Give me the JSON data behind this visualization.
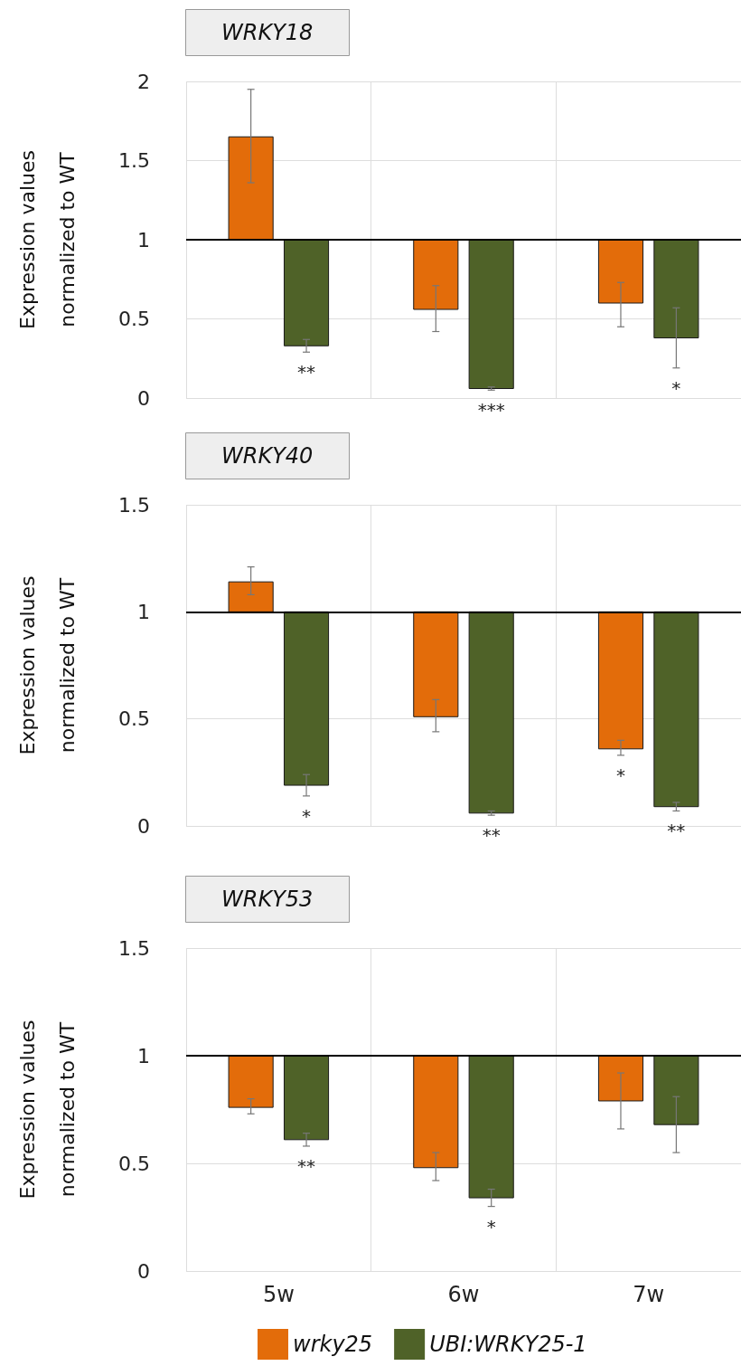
{
  "chart_data": [
    {
      "type": "bar",
      "title": "WRKY18",
      "ylabel": "Expression values\nnormalized to WT",
      "categories": [
        null,
        null,
        null
      ],
      "series": [
        {
          "color": "#e36c0a",
          "base": [
            1,
            1,
            1
          ],
          "values": [
            0.65,
            -0.44,
            -0.4
          ],
          "errors": [
            [
              1.36,
              1.95
            ],
            [
              0.42,
              0.71
            ],
            [
              0.45,
              0.73
            ]
          ]
        },
        {
          "color": "#4f6228",
          "base": [
            1,
            1,
            1
          ],
          "values": [
            -0.67,
            -0.94,
            -0.62
          ],
          "errors": [
            [
              0.29,
              0.37
            ],
            [
              0.05,
              0.07
            ],
            [
              0.19,
              0.57
            ]
          ],
          "value_labels": [
            "**",
            "***",
            "*"
          ]
        }
      ],
      "ylim": [
        0,
        2
      ],
      "yticks": [
        0,
        0.5,
        1,
        1.5,
        2
      ],
      "grid": true,
      "legend": false,
      "tick_labels": "y",
      "ref_lines": [
        {
          "axis": "y",
          "value": 1,
          "color": "#000000"
        }
      ]
    },
    {
      "type": "bar",
      "title": "WRKY40",
      "ylabel": "Expression values\nnormalized to WT",
      "categories": [
        null,
        null,
        null
      ],
      "series": [
        {
          "color": "#e36c0a",
          "base": [
            1,
            1,
            1
          ],
          "values": [
            0.14,
            -0.49,
            -0.64
          ],
          "errors": [
            [
              1.08,
              1.21
            ],
            [
              0.44,
              0.59
            ],
            [
              0.33,
              0.4
            ]
          ],
          "value_labels": [
            null,
            null,
            "*"
          ]
        },
        {
          "color": "#4f6228",
          "base": [
            1,
            1,
            1
          ],
          "values": [
            -0.81,
            -0.94,
            -0.91
          ],
          "errors": [
            [
              0.14,
              0.24
            ],
            [
              0.05,
              0.07
            ],
            [
              0.07,
              0.11
            ]
          ],
          "value_labels": [
            "*",
            "**",
            "**"
          ]
        }
      ],
      "ylim": [
        0,
        1.5
      ],
      "yticks": [
        0,
        0.5,
        1,
        1.5
      ],
      "grid": true,
      "legend": false,
      "tick_labels": "y",
      "ref_lines": [
        {
          "axis": "y",
          "value": 1,
          "color": "#000000"
        }
      ]
    },
    {
      "type": "bar",
      "title": "WRKY53",
      "ylabel": "Expression values\nnormalized to WT",
      "categories": [
        "5w",
        "6w",
        "7w"
      ],
      "series": [
        {
          "name": "wrky25",
          "color": "#e36c0a",
          "base": [
            1,
            1,
            1
          ],
          "values": [
            -0.24,
            -0.52,
            -0.21
          ],
          "errors": [
            [
              0.73,
              0.8
            ],
            [
              0.42,
              0.55
            ],
            [
              0.66,
              0.92
            ]
          ]
        },
        {
          "name": "UBI:WRKY25-1",
          "color": "#4f6228",
          "base": [
            1,
            1,
            1
          ],
          "values": [
            -0.39,
            -0.66,
            -0.32
          ],
          "errors": [
            [
              0.58,
              0.64
            ],
            [
              0.3,
              0.38
            ],
            [
              0.55,
              0.81
            ]
          ],
          "value_labels": [
            "**",
            "*",
            null
          ]
        }
      ],
      "ylim": [
        0,
        1.5
      ],
      "yticks": [
        0,
        0.5,
        1,
        1.5
      ],
      "grid": true,
      "legend": "bottom",
      "ref_lines": [
        {
          "axis": "y",
          "value": 1,
          "color": "#000000"
        }
      ]
    }
  ]
}
